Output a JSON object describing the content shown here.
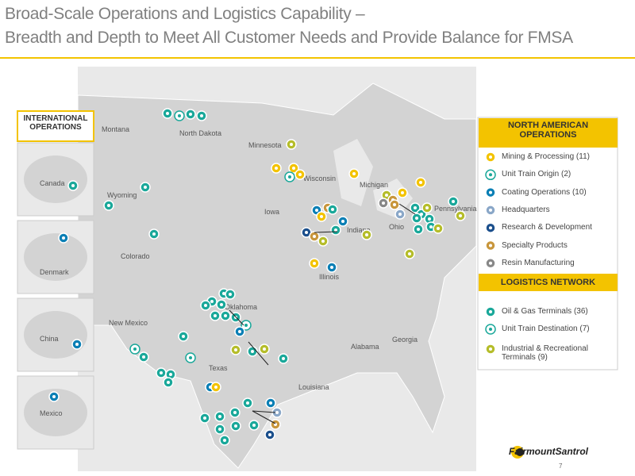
{
  "header": {
    "title_line1": "Broad-Scale Operations and Logistics Capability –",
    "title_line2": "Breadth and Depth to Meet All Customer Needs and Provide Balance for FMSA"
  },
  "international": {
    "title": "INTERNATIONAL OPERATIONS",
    "insets": [
      "Canada",
      "Denmark",
      "China",
      "Mexico"
    ]
  },
  "map_labels": [
    "Montana",
    "North Dakota",
    "Minnesota",
    "Wisconsin",
    "Michigan",
    "Wyoming",
    "Iowa",
    "Indiana",
    "Ohio",
    "Pennsylvania",
    "Colorado",
    "Illinois",
    "Oklahoma",
    "New Mexico",
    "Texas",
    "Alabama",
    "Georgia",
    "Louisiana"
  ],
  "legend": {
    "north_american_title": "NORTH AMERICAN OPERATIONS",
    "north_american_items": [
      "Mining & Processing (11)",
      "Unit Train Origin (2)",
      "Coating Operations (10)",
      "Headquarters",
      "Research & Development",
      "Specialty Products",
      "Resin Manufacturing"
    ],
    "logistics_title": "LOGISTICS NETWORK",
    "logistics_items": [
      "Oil & Gas Terminals (36)",
      "Unit Train Destination (7)",
      "Industrial & Recreational Terminals (9)"
    ]
  },
  "footer": {
    "logo": "FairmountSantrol",
    "page": "7"
  }
}
